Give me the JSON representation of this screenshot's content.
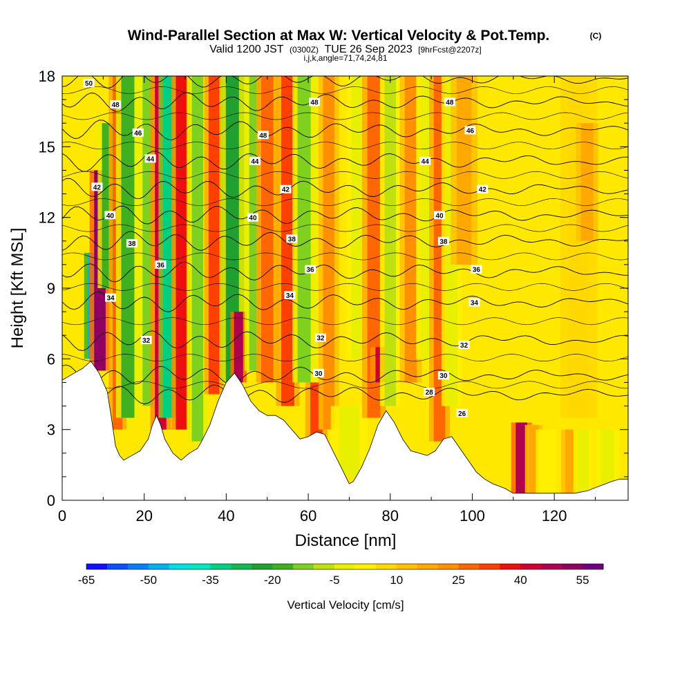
{
  "title": {
    "main": "Wind-Parallel Section at Max W: Vertical Velocity & Pot.Temp.",
    "copyright": "(C)",
    "valid_prefix": "Valid 1200 JST",
    "valid_utc": "(0300Z)",
    "valid_date": "TUE 26 Sep 2023",
    "forecast": "[9hrFcst@2207z]",
    "indices": "i,j,k,angle=71,74,24,81"
  },
  "chart_data": {
    "type": "heatmap",
    "xlabel": "Distance [nm]",
    "ylabel": "Height [Kft MSL]",
    "xlim": [
      0,
      138
    ],
    "ylim": [
      0,
      18
    ],
    "x_ticks": [
      "0",
      "20",
      "40",
      "60",
      "80",
      "100",
      "120"
    ],
    "x_tick_values": [
      0,
      20,
      40,
      60,
      80,
      100,
      120
    ],
    "y_ticks": [
      "0",
      "3",
      "6",
      "9",
      "12",
      "15",
      "18"
    ],
    "y_tick_values": [
      0,
      3,
      6,
      9,
      12,
      15,
      18
    ],
    "colorbar": {
      "label": "Vertical Velocity [cm/s]",
      "tick_labels": [
        "-65",
        "-50",
        "-35",
        "-20",
        "-5",
        "10",
        "25",
        "40",
        "55"
      ],
      "tick_values": [
        -65,
        -50,
        -35,
        -20,
        -5,
        10,
        25,
        40,
        55
      ],
      "colors": [
        "#1010ff",
        "#0a50ff",
        "#0080ff",
        "#00b0f0",
        "#00e0e0",
        "#00e8c0",
        "#00d080",
        "#10b850",
        "#20a030",
        "#40b020",
        "#80d020",
        "#c0e010",
        "#e8f000",
        "#fff000",
        "#ffd800",
        "#ffc000",
        "#ffa800",
        "#ff9000",
        "#ff6800",
        "#ff4000",
        "#ee1010",
        "#d00030",
        "#b00050",
        "#900060",
        "#700080"
      ]
    },
    "terrain": [
      [
        0,
        5.1
      ],
      [
        3,
        5.4
      ],
      [
        5,
        5.6
      ],
      [
        7,
        5.9
      ],
      [
        9,
        5.4
      ],
      [
        10,
        5.0
      ],
      [
        11,
        4.6
      ],
      [
        12,
        3.5
      ],
      [
        13,
        2.3
      ],
      [
        14,
        1.9
      ],
      [
        15,
        1.7
      ],
      [
        17,
        1.9
      ],
      [
        19,
        2.1
      ],
      [
        21,
        2.6
      ],
      [
        22,
        3.2
      ],
      [
        23,
        3.6
      ],
      [
        24,
        3.2
      ],
      [
        25,
        2.6
      ],
      [
        27,
        2.0
      ],
      [
        29,
        1.7
      ],
      [
        31,
        2.0
      ],
      [
        33,
        2.2
      ],
      [
        34,
        2.5
      ],
      [
        36,
        3.2
      ],
      [
        38,
        4.2
      ],
      [
        40,
        5.0
      ],
      [
        42,
        5.4
      ],
      [
        44,
        4.9
      ],
      [
        46,
        4.2
      ],
      [
        48,
        3.8
      ],
      [
        50,
        3.6
      ],
      [
        52,
        3.6
      ],
      [
        54,
        3.4
      ],
      [
        56,
        3.0
      ],
      [
        58,
        2.6
      ],
      [
        60,
        2.7
      ],
      [
        62,
        2.9
      ],
      [
        64,
        2.8
      ],
      [
        66,
        2.1
      ],
      [
        68,
        1.4
      ],
      [
        70,
        0.7
      ],
      [
        71,
        0.8
      ],
      [
        73,
        1.4
      ],
      [
        75,
        2.2
      ],
      [
        77,
        3.2
      ],
      [
        79,
        3.8
      ],
      [
        81,
        3.3
      ],
      [
        83,
        2.6
      ],
      [
        85,
        2.1
      ],
      [
        87,
        2.0
      ],
      [
        89,
        1.9
      ],
      [
        91,
        2.1
      ],
      [
        93,
        2.6
      ],
      [
        95,
        2.7
      ],
      [
        97,
        2.2
      ],
      [
        99,
        1.7
      ],
      [
        101,
        1.2
      ],
      [
        103,
        0.9
      ],
      [
        105,
        0.7
      ],
      [
        108,
        0.5
      ],
      [
        110,
        0.3
      ],
      [
        113,
        0.3
      ],
      [
        117,
        0.3
      ],
      [
        121,
        0.3
      ],
      [
        125,
        0.3
      ],
      [
        128,
        0.4
      ],
      [
        131,
        0.6
      ],
      [
        134,
        0.8
      ],
      [
        136,
        0.9
      ],
      [
        138,
        0.9
      ]
    ],
    "bands": [
      {
        "x": 7.5,
        "dx": 1.2,
        "z0": 6.0,
        "z1": 10.5,
        "w": -55
      },
      {
        "x": 9.2,
        "dx": 1.4,
        "z0": 5.5,
        "z1": 14.0,
        "w": 45
      },
      {
        "x": 11.0,
        "dx": 1.3,
        "z0": 9.0,
        "z1": 16.0,
        "w": -25
      },
      {
        "x": 13.5,
        "dx": 1.2,
        "z0": 3.0,
        "z1": 18.0,
        "w": 20
      },
      {
        "x": 16.0,
        "dx": 1.6,
        "z0": 3.5,
        "z1": 18.0,
        "w": -25
      },
      {
        "x": 21.0,
        "dx": 1.4,
        "z0": 4.0,
        "z1": 18.0,
        "w": -20
      },
      {
        "x": 24.0,
        "dx": 1.4,
        "z0": 3.0,
        "z1": 18.0,
        "w": 35
      },
      {
        "x": 26.0,
        "dx": 1.4,
        "z0": 3.5,
        "z1": 18.0,
        "w": -40
      },
      {
        "x": 29.0,
        "dx": 1.3,
        "z0": 3.0,
        "z1": 18.0,
        "w": 30
      },
      {
        "x": 33.0,
        "dx": 1.4,
        "z0": 2.5,
        "z1": 18.0,
        "w": -20
      },
      {
        "x": 37.0,
        "dx": 1.3,
        "z0": 4.5,
        "z1": 18.0,
        "w": 25
      },
      {
        "x": 41.5,
        "dx": 1.6,
        "z0": 5.0,
        "z1": 18.0,
        "w": -30
      },
      {
        "x": 43.0,
        "dx": 1.1,
        "z0": 5.0,
        "z1": 8.0,
        "w": 40
      },
      {
        "x": 47.0,
        "dx": 1.4,
        "z0": 5.5,
        "z1": 18.0,
        "w": -20
      },
      {
        "x": 50.0,
        "dx": 1.5,
        "z0": 5.0,
        "z1": 18.0,
        "w": 20
      },
      {
        "x": 55.0,
        "dx": 1.6,
        "z0": 4.0,
        "z1": 18.0,
        "w": 25
      },
      {
        "x": 59.0,
        "dx": 1.6,
        "z0": 5.0,
        "z1": 18.0,
        "w": -20
      },
      {
        "x": 62.0,
        "dx": 1.5,
        "z0": 2.5,
        "z1": 5.0,
        "w": 25
      },
      {
        "x": 65.0,
        "dx": 1.4,
        "z0": 3.0,
        "z1": 18.0,
        "w": 15
      },
      {
        "x": 70.0,
        "dx": 2.5,
        "z0": 1.0,
        "z1": 4.0,
        "w": -8
      },
      {
        "x": 72.0,
        "dx": 1.5,
        "z0": 6.0,
        "z1": 18.0,
        "w": -12
      },
      {
        "x": 76.0,
        "dx": 1.6,
        "z0": 3.5,
        "z1": 18.0,
        "w": 20
      },
      {
        "x": 78.0,
        "dx": 1.6,
        "z0": 5.0,
        "z1": 6.5,
        "w": 35
      },
      {
        "x": 80.0,
        "dx": 1.4,
        "z0": 4.0,
        "z1": 18.0,
        "w": -15
      },
      {
        "x": 85.0,
        "dx": 1.5,
        "z0": 5.0,
        "z1": 18.0,
        "w": 15
      },
      {
        "x": 89.0,
        "dx": 1.5,
        "z0": 6.0,
        "z1": 18.0,
        "w": -10
      },
      {
        "x": 92.0,
        "dx": 1.4,
        "z0": 2.5,
        "z1": 18.0,
        "w": 20
      },
      {
        "x": 95.0,
        "dx": 1.4,
        "z0": 4.0,
        "z1": 18.0,
        "w": -12
      },
      {
        "x": 98.0,
        "dx": 1.8,
        "z0": 10.0,
        "z1": 18.0,
        "w": 10
      },
      {
        "x": 112.0,
        "dx": 1.4,
        "z0": 0.3,
        "z1": 3.3,
        "w": 40
      },
      {
        "x": 115.0,
        "dx": 1.2,
        "z0": 0.3,
        "z1": 3.2,
        "w": 12
      },
      {
        "x": 118.0,
        "dx": 1.4,
        "z0": 0.3,
        "z1": 3.0,
        "w": -6
      },
      {
        "x": 124.0,
        "dx": 1.3,
        "z0": 0.3,
        "z1": 3.0,
        "w": 12
      },
      {
        "x": 127.0,
        "dx": 1.3,
        "z0": 0.3,
        "z1": 3.0,
        "w": -12
      },
      {
        "x": 133.0,
        "dx": 1.6,
        "z0": 0.3,
        "z1": 3.0,
        "w": -10
      },
      {
        "x": 126.0,
        "dx": 2.5,
        "z0": 3.5,
        "z1": 18.0,
        "w": -2
      },
      {
        "x": 128.0,
        "dx": 1.5,
        "z0": 11.0,
        "z1": 16.0,
        "w": 8
      }
    ],
    "isentropes": [
      {
        "label": "28",
        "level": 4.5
      },
      {
        "label": "30",
        "level": 5.3
      },
      {
        "label": "32",
        "level": 6.8
      },
      {
        "label": "34",
        "level": 8.4
      },
      {
        "label": "36",
        "level": 9.7
      },
      {
        "label": "38",
        "level": 11.0
      },
      {
        "label": "40",
        "level": 12.1
      },
      {
        "label": "42",
        "level": 13.2
      },
      {
        "label": "44",
        "level": 14.4
      },
      {
        "label": "46",
        "level": 15.7
      },
      {
        "label": "48",
        "level": 16.9
      },
      {
        "label": "50",
        "level": 17.9
      }
    ],
    "contour_labels": [
      {
        "text": "50",
        "x": 6.5,
        "y": 17.7
      },
      {
        "text": "48",
        "x": 13.0,
        "y": 16.8
      },
      {
        "text": "46",
        "x": 18.5,
        "y": 15.6
      },
      {
        "text": "44",
        "x": 21.5,
        "y": 14.5
      },
      {
        "text": "42",
        "x": 8.5,
        "y": 13.3
      },
      {
        "text": "40",
        "x": 11.7,
        "y": 12.1
      },
      {
        "text": "38",
        "x": 17.0,
        "y": 10.9
      },
      {
        "text": "36",
        "x": 24.0,
        "y": 10.0
      },
      {
        "text": "34",
        "x": 11.8,
        "y": 8.6
      },
      {
        "text": "32",
        "x": 20.5,
        "y": 6.8
      },
      {
        "text": "48",
        "x": 61.5,
        "y": 16.9
      },
      {
        "text": "48",
        "x": 49.0,
        "y": 15.5
      },
      {
        "text": "44",
        "x": 47.0,
        "y": 14.4
      },
      {
        "text": "42",
        "x": 54.5,
        "y": 13.2
      },
      {
        "text": "40",
        "x": 46.5,
        "y": 12.0
      },
      {
        "text": "38",
        "x": 56.0,
        "y": 11.1
      },
      {
        "text": "36",
        "x": 60.5,
        "y": 9.8
      },
      {
        "text": "34",
        "x": 55.5,
        "y": 8.7
      },
      {
        "text": "32",
        "x": 63.0,
        "y": 6.9
      },
      {
        "text": "30",
        "x": 62.5,
        "y": 5.4
      },
      {
        "text": "48",
        "x": 94.5,
        "y": 16.9
      },
      {
        "text": "46",
        "x": 99.5,
        "y": 15.7
      },
      {
        "text": "44",
        "x": 88.5,
        "y": 14.4
      },
      {
        "text": "42",
        "x": 102.5,
        "y": 13.2
      },
      {
        "text": "40",
        "x": 92.0,
        "y": 12.1
      },
      {
        "text": "38",
        "x": 93.0,
        "y": 11.0
      },
      {
        "text": "36",
        "x": 101.0,
        "y": 9.8
      },
      {
        "text": "34",
        "x": 100.5,
        "y": 8.4
      },
      {
        "text": "32",
        "x": 98.0,
        "y": 6.6
      },
      {
        "text": "30",
        "x": 93.0,
        "y": 5.3
      },
      {
        "text": "28",
        "x": 89.5,
        "y": 4.6
      },
      {
        "text": "26",
        "x": 97.5,
        "y": 3.7
      }
    ]
  }
}
